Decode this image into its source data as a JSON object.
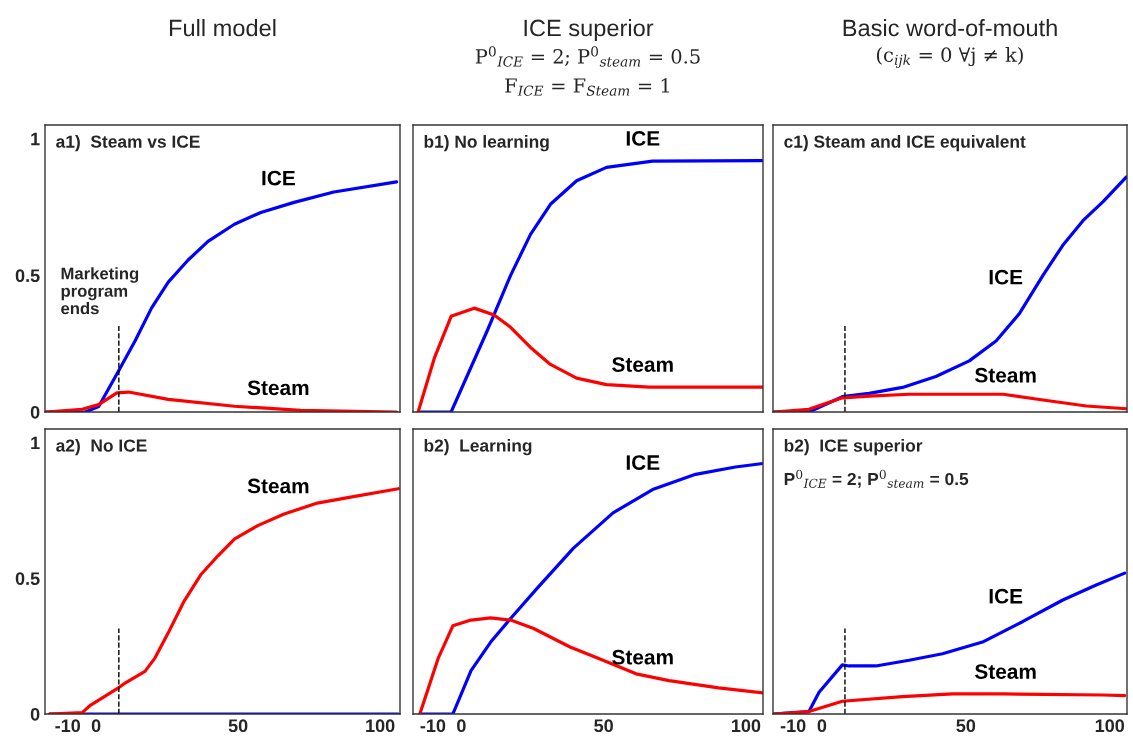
{
  "chart_data": [
    {
      "type": "line",
      "title": "Full model",
      "annotations": [
        "a1)  Steam vs ICE"
      ],
      "xlim": [
        -18,
        107
      ],
      "xticks": [
        -10,
        0,
        50,
        100
      ],
      "ylim": [
        0,
        1.05
      ],
      "yticks": [
        0,
        0.5,
        1
      ],
      "tick_labels": "y",
      "ref_lines": [
        {
          "axis": "x",
          "value": 8,
          "label": "Marketing\nprogram\nends",
          "line_style": "dashed",
          "color": "#000000"
        }
      ],
      "series": [
        {
          "name": "ICE",
          "color": "#0000ff",
          "x": [
            -17.7,
            -3.8,
            0.9,
            7.7,
            13.7,
            19.5,
            25.4,
            32.4,
            39.4,
            48.7,
            58,
            69.7,
            83.7,
            105.8
          ],
          "values": [
            0,
            0,
            0.02,
            0.146,
            0.26,
            0.38,
            0.475,
            0.556,
            0.624,
            0.687,
            0.73,
            0.767,
            0.805,
            0.842
          ]
        },
        {
          "name": "Steam",
          "color": "#ff0000",
          "x": [
            -17.7,
            -4.9,
            0.9,
            7.3,
            11.4,
            25.4,
            48.7,
            72,
            105.8
          ],
          "values": [
            0,
            0.01,
            0.027,
            0.07,
            0.073,
            0.046,
            0.021,
            0.006,
            0
          ]
        }
      ]
    },
    {
      "type": "line",
      "title": "ICE superior",
      "subtitle": "P$^{0}$$_{ICE}$ = 2; P$^{0}$$_{steam}$ = 0.5\nF$_{ICE}$ = F$_{Steam}$ = 1",
      "annotations": [
        "b1) No learning"
      ],
      "xlim": [
        -17,
        106
      ],
      "xticks": [
        -10,
        0,
        50,
        100
      ],
      "ylim": [
        0,
        1.05
      ],
      "yticks": [
        0,
        0.5,
        1
      ],
      "tick_labels": false,
      "series": [
        {
          "name": "ICE",
          "color": "#0000ff",
          "x": [
            -15.2,
            -3.6,
            9.2,
            17.3,
            24.3,
            31.3,
            40.5,
            51,
            67.2,
            105.6
          ],
          "values": [
            0,
            0,
            0.3,
            0.5,
            0.65,
            0.76,
            0.846,
            0.895,
            0.918,
            0.92
          ]
        },
        {
          "name": "Steam",
          "color": "#ff0000",
          "x": [
            -15.2,
            -9.4,
            -3.6,
            4.5,
            11.5,
            17.3,
            24.3,
            31.3,
            40.5,
            51,
            66,
            105.6
          ],
          "values": [
            0,
            0.2,
            0.35,
            0.38,
            0.355,
            0.31,
            0.236,
            0.174,
            0.124,
            0.1,
            0.091,
            0.091
          ]
        }
      ]
    },
    {
      "type": "line",
      "title": "Basic word-of-mouth",
      "subtitle": "(c$_{ijk}$ = 0 ∀j ≠ k)",
      "annotations": [
        "c1) Steam and ICE equivalent"
      ],
      "xlim": [
        -17,
        106
      ],
      "xticks": [
        -10,
        0,
        50,
        100
      ],
      "ylim": [
        0,
        1.05
      ],
      "yticks": [
        0,
        0.5,
        1
      ],
      "tick_labels": false,
      "ref_lines": [
        {
          "axis": "x",
          "value": 8,
          "line_style": "dashed",
          "color": "#000000"
        }
      ],
      "series": [
        {
          "name": "ICE",
          "color": "#0000ff",
          "x": [
            -16.7,
            -4.5,
            7.1,
            16.4,
            28,
            39.6,
            51.2,
            60.5,
            68.6,
            76.8,
            83.7,
            90.7,
            97.7,
            105.8
          ],
          "values": [
            0,
            0,
            0.056,
            0.068,
            0.09,
            0.13,
            0.187,
            0.26,
            0.36,
            0.5,
            0.61,
            0.7,
            0.77,
            0.86
          ]
        },
        {
          "name": "Steam",
          "color": "#ff0000",
          "x": [
            -16.7,
            -4.5,
            7.1,
            16.4,
            30.3,
            62.9,
            76.8,
            91.9,
            105.8
          ],
          "values": [
            0,
            0.01,
            0.052,
            0.058,
            0.065,
            0.065,
            0.044,
            0.022,
            0.012
          ]
        }
      ]
    },
    {
      "type": "line",
      "annotations": [
        "a2)  No ICE"
      ],
      "xlim": [
        -18,
        107
      ],
      "xticks": [
        -10,
        0,
        50,
        100
      ],
      "ylim": [
        0,
        1.05
      ],
      "yticks": [
        0,
        0.5,
        1
      ],
      "ref_lines": [
        {
          "axis": "x",
          "value": 8,
          "line_style": "dashed",
          "color": "#000000"
        }
      ],
      "series": [
        {
          "color": "#0000ff",
          "x": [
            -16.4,
            106.4
          ],
          "values": [
            0,
            0
          ]
        },
        {
          "name": "Steam",
          "color": "#ff0000",
          "x": [
            -16.4,
            -4.9,
            -1.9,
            7.7,
            10.2,
            17.2,
            20.7,
            25.4,
            31,
            37,
            42.9,
            48.8,
            56.9,
            66.2,
            77.9,
            89.6,
            106.4
          ],
          "values": [
            0,
            0.005,
            0.033,
            0.095,
            0.114,
            0.157,
            0.206,
            0.299,
            0.416,
            0.515,
            0.583,
            0.645,
            0.694,
            0.737,
            0.777,
            0.799,
            0.83
          ]
        }
      ]
    },
    {
      "type": "line",
      "annotations": [
        "b2)  Learning"
      ],
      "xlim": [
        -17,
        106
      ],
      "xticks": [
        -10,
        0,
        50,
        100
      ],
      "ylim": [
        0,
        1.05
      ],
      "yticks": [
        0,
        0.5,
        1
      ],
      "tick_labels": "x",
      "series": [
        {
          "name": "ICE",
          "color": "#0000ff",
          "x": [
            -14.6,
            -3,
            3.4,
            10.3,
            17.3,
            26.6,
            39.4,
            53.3,
            67.2,
            82.3,
            96.3,
            106
          ],
          "values": [
            0,
            0,
            0.16,
            0.265,
            0.352,
            0.463,
            0.611,
            0.741,
            0.827,
            0.883,
            0.91,
            0.923
          ]
        },
        {
          "name": "Steam",
          "color": "#ff0000",
          "x": [
            -14.6,
            -8.2,
            -3,
            3.4,
            10.3,
            17.3,
            25.4,
            38.2,
            49.8,
            61.4,
            73,
            90.4,
            106
          ],
          "values": [
            0,
            0.204,
            0.325,
            0.346,
            0.354,
            0.346,
            0.315,
            0.247,
            0.198,
            0.148,
            0.123,
            0.096,
            0.078
          ]
        }
      ]
    },
    {
      "type": "line",
      "annotations": [
        "b2)  ICE superior",
        "P$^{0}$$_{ICE}$ = 2; P$^{0}$$_{steam}$ = 0.5"
      ],
      "xlim": [
        -17,
        106
      ],
      "xticks": [
        -10,
        0,
        50,
        100
      ],
      "ylim": [
        0,
        1.05
      ],
      "yticks": [
        0,
        0.5,
        1
      ],
      "tick_labels": "x",
      "ref_lines": [
        {
          "axis": "x",
          "value": 8,
          "line_style": "dashed",
          "color": "#000000"
        }
      ],
      "series": [
        {
          "name": "ICE",
          "color": "#0000ff",
          "x": [
            -17,
            -4.5,
            -1,
            7.1,
            9.4,
            18.7,
            30.3,
            41.9,
            55.8,
            69.7,
            83.7,
            95.3,
            105.2
          ],
          "values": [
            0,
            0.009,
            0.08,
            0.181,
            0.177,
            0.177,
            0.198,
            0.222,
            0.265,
            0.34,
            0.42,
            0.475,
            0.519
          ]
        },
        {
          "name": "Steam",
          "color": "#ff0000",
          "x": [
            -17,
            -4.5,
            7.1,
            28,
            45.4,
            62.8,
            97.7,
            105.2
          ],
          "values": [
            0,
            0.009,
            0.047,
            0.064,
            0.074,
            0.074,
            0.07,
            0.068
          ]
        }
      ]
    }
  ]
}
